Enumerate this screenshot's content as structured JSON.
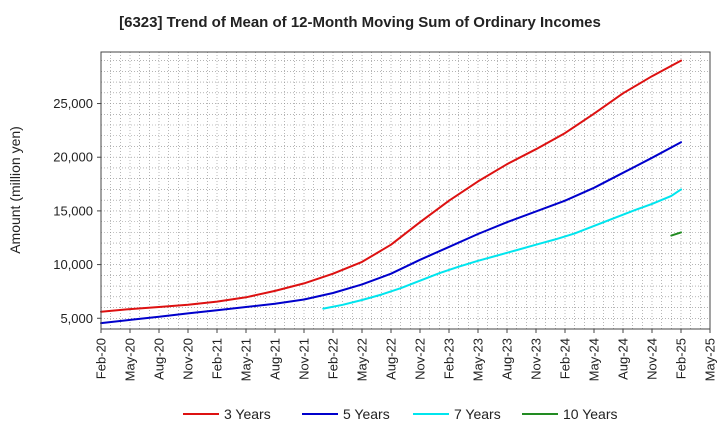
{
  "chart_data": {
    "type": "line",
    "title": "[6323]  Trend of Mean of 12-Month Moving Sum of Ordinary Incomes",
    "xlabel": "",
    "ylabel": "Amount (million yen)",
    "x_tick_labels": [
      "Feb-20",
      "May-20",
      "Aug-20",
      "Nov-20",
      "Feb-21",
      "May-21",
      "Aug-21",
      "Nov-21",
      "Feb-22",
      "May-22",
      "Aug-22",
      "Nov-22",
      "Feb-23",
      "May-23",
      "Aug-23",
      "Nov-23",
      "Feb-24",
      "May-24",
      "Aug-24",
      "Nov-24",
      "Feb-25",
      "May-25"
    ],
    "y_tick_labels": [
      "5,000",
      "10,000",
      "15,000",
      "20,000",
      "25,000"
    ],
    "y_ticks": [
      5000,
      10000,
      15000,
      20000,
      25000
    ],
    "ylim": [
      4000,
      29800
    ],
    "x_range_months": [
      0,
      63
    ],
    "grid": true,
    "legend_position": "bottom",
    "series": [
      {
        "name": "3 Years",
        "color": "#dd1111",
        "x_months": [
          0,
          3,
          6,
          9,
          12,
          15,
          18,
          21,
          24,
          27,
          30,
          33,
          36,
          39,
          42,
          45,
          48,
          51,
          54,
          57,
          60
        ],
        "values": [
          5600,
          5850,
          6050,
          6250,
          6550,
          6950,
          7550,
          8250,
          9150,
          10250,
          11850,
          13950,
          15950,
          17750,
          19350,
          20750,
          22250,
          24050,
          25950,
          27550,
          29000
        ]
      },
      {
        "name": "5 Years",
        "color": "#0000cc",
        "x_months": [
          0,
          3,
          6,
          9,
          12,
          15,
          18,
          21,
          24,
          27,
          30,
          33,
          36,
          39,
          42,
          45,
          48,
          51,
          54,
          57,
          60
        ],
        "values": [
          4550,
          4850,
          5150,
          5450,
          5750,
          6050,
          6350,
          6750,
          7350,
          8150,
          9150,
          10450,
          11650,
          12850,
          13950,
          14950,
          15950,
          17150,
          18550,
          19950,
          21400
        ]
      },
      {
        "name": "7 Years",
        "color": "#00e5ee",
        "x_months": [
          23,
          25,
          27,
          29,
          31,
          33,
          35,
          37,
          39,
          41,
          43,
          45,
          47,
          49,
          51,
          53,
          55,
          57,
          59,
          60
        ],
        "values": [
          5900,
          6250,
          6700,
          7200,
          7800,
          8500,
          9200,
          9800,
          10350,
          10850,
          11350,
          11850,
          12350,
          12900,
          13600,
          14300,
          15000,
          15650,
          16400,
          17000
        ]
      },
      {
        "name": "10 Years",
        "color": "#228b22",
        "x_months": [
          59,
          60
        ],
        "values": [
          12700,
          13000
        ]
      }
    ]
  }
}
